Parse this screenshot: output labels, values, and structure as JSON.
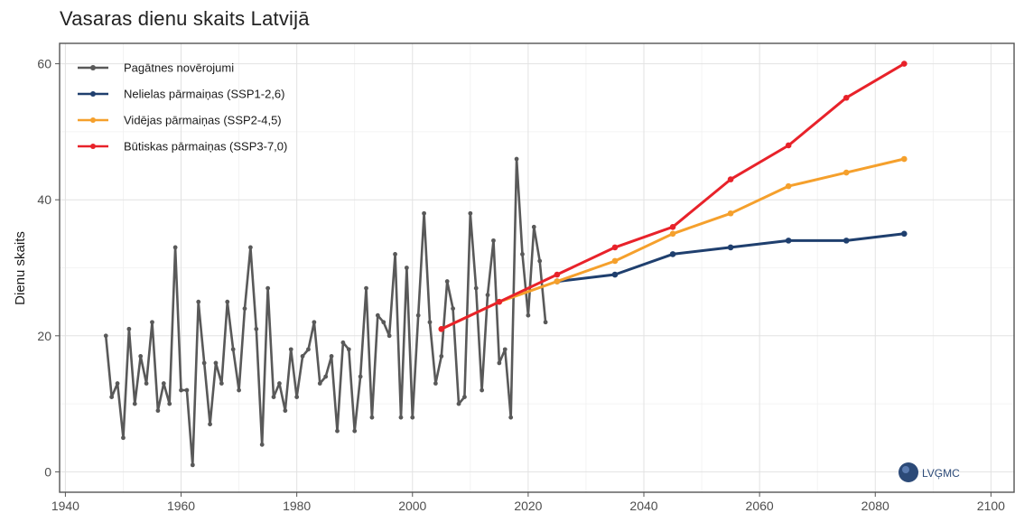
{
  "chart_data": {
    "type": "line",
    "title": "Vasaras dienu skaits Latvijā",
    "xlabel": "",
    "ylabel": "Dienu skaits",
    "xlim": [
      1939,
      2104
    ],
    "ylim": [
      -3,
      63
    ],
    "x_ticks": [
      1940,
      1960,
      1980,
      2000,
      2020,
      2040,
      2060,
      2080,
      2100
    ],
    "y_ticks": [
      0,
      20,
      40,
      60
    ],
    "grid": true,
    "legend_position": "top-left",
    "series": [
      {
        "name": "Pagātnes novērojumi",
        "color": "#595959",
        "x": [
          1947,
          1948,
          1949,
          1950,
          1951,
          1952,
          1953,
          1954,
          1955,
          1956,
          1957,
          1958,
          1959,
          1960,
          1961,
          1962,
          1963,
          1964,
          1965,
          1966,
          1967,
          1968,
          1969,
          1970,
          1971,
          1972,
          1973,
          1974,
          1975,
          1976,
          1977,
          1978,
          1979,
          1980,
          1981,
          1982,
          1983,
          1984,
          1985,
          1986,
          1987,
          1988,
          1989,
          1990,
          1991,
          1992,
          1993,
          1994,
          1995,
          1996,
          1997,
          1998,
          1999,
          2000,
          2001,
          2002,
          2003,
          2004,
          2005,
          2006,
          2007,
          2008,
          2009,
          2010,
          2011,
          2012,
          2013,
          2014,
          2015,
          2016,
          2017,
          2018,
          2019,
          2020,
          2021,
          2022,
          2023
        ],
        "y": [
          20,
          11,
          13,
          5,
          21,
          10,
          17,
          13,
          22,
          9,
          13,
          10,
          33,
          12,
          12,
          1,
          25,
          16,
          7,
          16,
          13,
          25,
          18,
          12,
          24,
          33,
          21,
          4,
          27,
          11,
          13,
          9,
          18,
          11,
          17,
          18,
          22,
          13,
          14,
          17,
          6,
          19,
          18,
          6,
          14,
          27,
          8,
          23,
          22,
          20,
          32,
          8,
          30,
          8,
          23,
          38,
          22,
          13,
          17,
          28,
          24,
          10,
          11,
          38,
          27,
          12,
          26,
          34,
          16,
          18,
          8,
          46,
          32,
          23,
          36,
          31,
          22
        ]
      },
      {
        "name": "Nelielas pārmaiņas (SSP1-2,6)",
        "color": "#1f3f6e",
        "x": [
          2025,
          2035,
          2045,
          2055,
          2065,
          2075,
          2085
        ],
        "y": [
          28,
          29,
          32,
          33,
          34,
          34,
          35
        ]
      },
      {
        "name": "Vidējas pārmaiņas (SSP2-4,5)",
        "color": "#f5a02c",
        "x": [
          2005,
          2015,
          2025,
          2035,
          2045,
          2055,
          2065,
          2075,
          2085
        ],
        "y": [
          21,
          25,
          28,
          31,
          35,
          38,
          42,
          44,
          46
        ]
      },
      {
        "name": "Būtiskas pārmaiņas (SSP3-7,0)",
        "color": "#e8222a",
        "x": [
          2005,
          2015,
          2025,
          2035,
          2045,
          2055,
          2065,
          2075,
          2085
        ],
        "y": [
          21,
          25,
          29,
          33,
          36,
          43,
          48,
          55,
          60
        ]
      }
    ]
  },
  "logo": {
    "text": "LVĢMC",
    "color": "#2c4a78"
  }
}
